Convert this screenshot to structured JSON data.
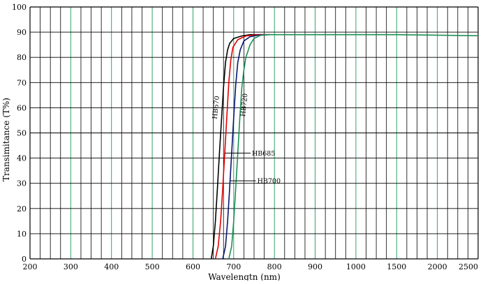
{
  "chart_data": {
    "type": "line",
    "title": "",
    "xlabel": "Wavelengtn (nm)",
    "ylabel": "Transimitance (T%)",
    "x_tick_labels": [
      "200",
      "300",
      "400",
      "500",
      "600",
      "700",
      "800",
      "900",
      "1000",
      "1500",
      "2000",
      "2500"
    ],
    "y_tick_labels": [
      "0",
      "10",
      "20",
      "30",
      "40",
      "50",
      "60",
      "70",
      "80",
      "90",
      "100"
    ],
    "ylim": [
      0,
      100
    ],
    "grid": true,
    "grid_minor_color": "#000000",
    "grid_major_color": "#1a9a55",
    "series": [
      {
        "name": "HB670",
        "color": "#000000",
        "points": [
          [
            645,
            0
          ],
          [
            650,
            5
          ],
          [
            655,
            15
          ],
          [
            660,
            28
          ],
          [
            665,
            42
          ],
          [
            670,
            55
          ],
          [
            675,
            68
          ],
          [
            680,
            78
          ],
          [
            685,
            83
          ],
          [
            690,
            85.5
          ],
          [
            700,
            87.5
          ],
          [
            720,
            88.5
          ],
          [
            740,
            89
          ],
          [
            780,
            89
          ]
        ]
      },
      {
        "name": "HB685",
        "color": "#e00000",
        "points": [
          [
            655,
            0
          ],
          [
            662,
            5
          ],
          [
            668,
            15
          ],
          [
            673,
            28
          ],
          [
            678,
            42
          ],
          [
            683,
            56
          ],
          [
            688,
            70
          ],
          [
            693,
            79
          ],
          [
            698,
            84
          ],
          [
            710,
            87
          ],
          [
            730,
            88.5
          ],
          [
            760,
            89
          ],
          [
            790,
            89
          ]
        ]
      },
      {
        "name": "HB700",
        "color": "#0a1570",
        "points": [
          [
            673,
            0
          ],
          [
            680,
            5
          ],
          [
            685,
            15
          ],
          [
            690,
            28
          ],
          [
            695,
            42
          ],
          [
            700,
            56
          ],
          [
            705,
            69
          ],
          [
            710,
            78
          ],
          [
            716,
            83
          ],
          [
            725,
            86.5
          ],
          [
            740,
            88.2
          ],
          [
            760,
            88.8
          ],
          [
            790,
            89
          ]
        ]
      },
      {
        "name": "HB720",
        "color": "#1a8f55",
        "points": [
          [
            688,
            0
          ],
          [
            695,
            5
          ],
          [
            700,
            15
          ],
          [
            705,
            28
          ],
          [
            710,
            42
          ],
          [
            715,
            56
          ],
          [
            720,
            68
          ],
          [
            725,
            75
          ],
          [
            730,
            80
          ],
          [
            740,
            85
          ],
          [
            750,
            87.5
          ],
          [
            765,
            88.7
          ],
          [
            780,
            89
          ],
          [
            800,
            89
          ],
          [
            1000,
            89
          ],
          [
            1500,
            89
          ],
          [
            2000,
            88.8
          ],
          [
            2500,
            88.6
          ]
        ]
      }
    ]
  }
}
